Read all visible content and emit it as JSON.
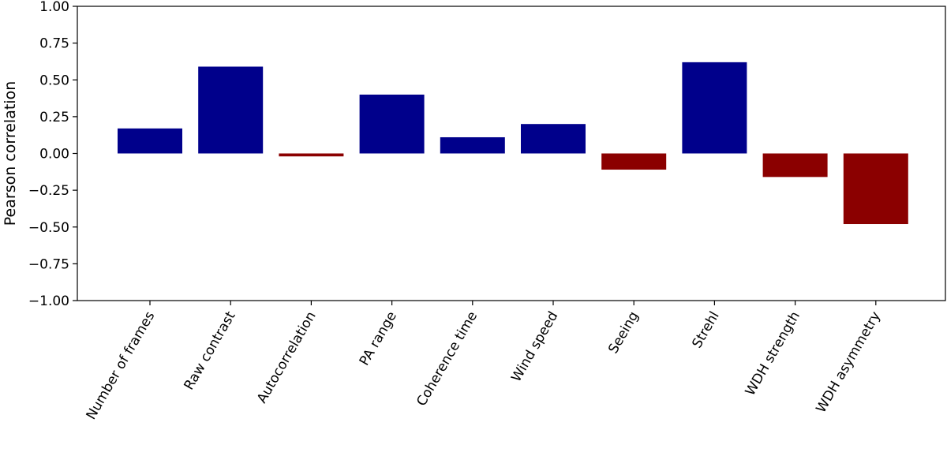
{
  "chart_data": {
    "type": "bar",
    "title": "",
    "xlabel": "",
    "ylabel": "Pearson correlation",
    "ylim": [
      -1.0,
      1.0
    ],
    "yticks": [
      1.0,
      0.75,
      0.5,
      0.25,
      0.0,
      -0.25,
      -0.5,
      -0.75,
      -1.0
    ],
    "ytick_labels": [
      "1.00",
      "0.75",
      "0.50",
      "0.25",
      "0.00",
      "−0.25",
      "−0.50",
      "−0.75",
      "−1.00"
    ],
    "categories": [
      "Number of frames",
      "Raw contrast",
      "Autocorrelation",
      "PA range",
      "Coherence time",
      "Wind speed",
      "Seeing",
      "Strehl",
      "WDH strength",
      "WDH asymmetry"
    ],
    "values": [
      0.17,
      0.59,
      -0.02,
      0.4,
      0.11,
      0.2,
      -0.11,
      0.62,
      -0.16,
      -0.48
    ],
    "grid": false,
    "colors": {
      "positive": "#00008b",
      "negative": "#8b0000"
    }
  }
}
